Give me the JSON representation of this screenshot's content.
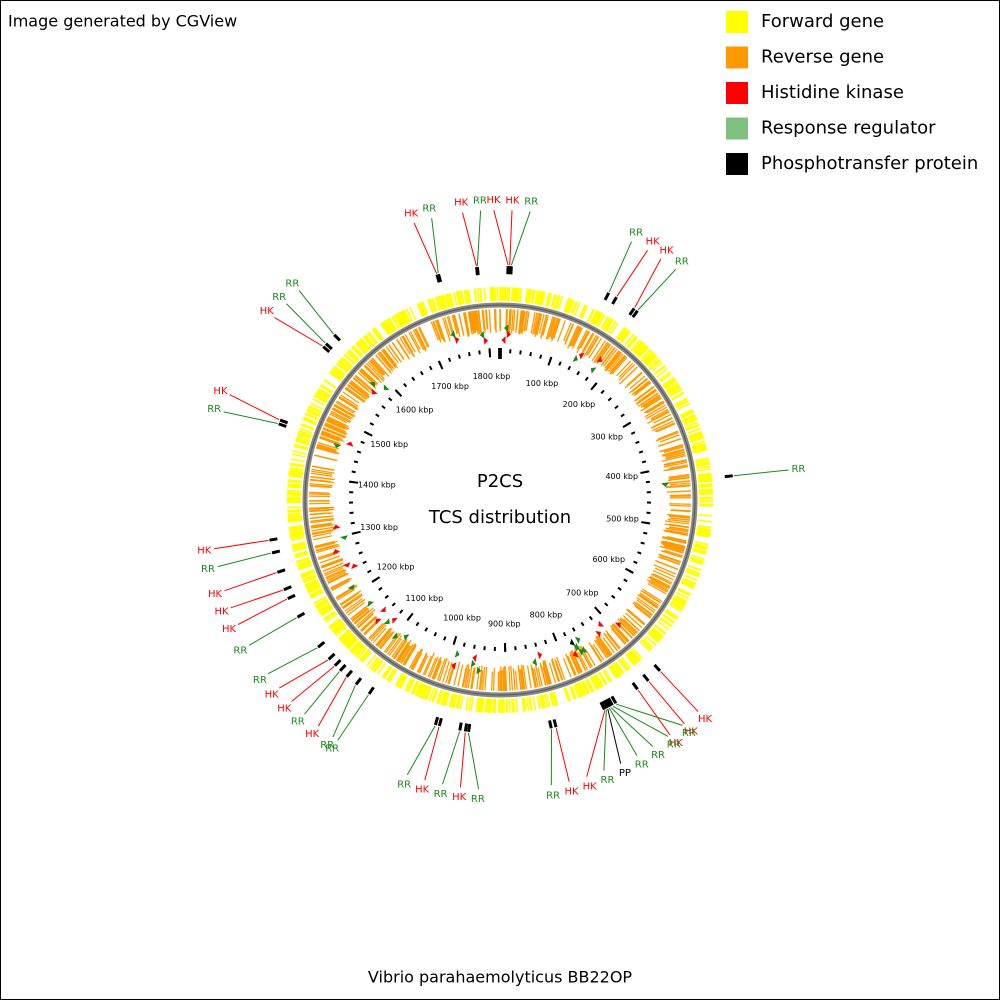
{
  "header": {
    "title": "Image generated by CGView"
  },
  "legend": [
    {
      "label": "Forward gene",
      "color": "#ffff00"
    },
    {
      "label": "Reverse gene",
      "color": "#ff9900"
    },
    {
      "label": "Histidine kinase",
      "color": "#ff0000"
    },
    {
      "label": "Response regulator",
      "color": "#80c080"
    },
    {
      "label": "Phosphotransfer protein",
      "color": "#000000"
    }
  ],
  "center": {
    "line1": "P2CS",
    "line2": "TCS distribution"
  },
  "footer": {
    "title": "Vibrio parahaemolyticus BB22OP"
  },
  "map": {
    "range_kbp": [
      0,
      1820
    ],
    "ticks": [
      {
        "value": 100,
        "label": "100 kbp"
      },
      {
        "value": 200,
        "label": "200 kbp"
      },
      {
        "value": 300,
        "label": "300 kbp"
      },
      {
        "value": 400,
        "label": "400 kbp"
      },
      {
        "value": 500,
        "label": "500 kbp"
      },
      {
        "value": 600,
        "label": "600 kbp"
      },
      {
        "value": 700,
        "label": "700 kbp"
      },
      {
        "value": 800,
        "label": "800 kbp"
      },
      {
        "value": 900,
        "label": "900 kbp"
      },
      {
        "value": 1000,
        "label": "1000 kbp"
      },
      {
        "value": 1100,
        "label": "1100 kbp"
      },
      {
        "value": 1200,
        "label": "1200 kbp"
      },
      {
        "value": 1300,
        "label": "1300 kbp"
      },
      {
        "value": 1400,
        "label": "1400 kbp"
      },
      {
        "value": 1500,
        "label": "1500 kbp"
      },
      {
        "value": 1600,
        "label": "1600 kbp"
      },
      {
        "value": 1700,
        "label": "1700 kbp"
      },
      {
        "value": 1800,
        "label": "1800 kbp"
      }
    ],
    "colors": {
      "HK": "#ff0000",
      "RR": "#1a8a1a",
      "PP": "#000000"
    },
    "features": [
      {
        "label": "HK",
        "kbp": 10
      },
      {
        "label": "HK",
        "kbp": 12
      },
      {
        "label": "RR",
        "kbp": 14
      },
      {
        "label": "RR",
        "kbp": 140
      },
      {
        "label": "HK",
        "kbp": 151
      },
      {
        "label": "HK",
        "kbp": 177
      },
      {
        "label": "RR",
        "kbp": 182
      },
      {
        "label": "RR",
        "kbp": 425
      },
      {
        "label": "HK",
        "kbp": 692
      },
      {
        "label": "HK",
        "kbp": 711
      },
      {
        "label": "HK",
        "kbp": 728
      },
      {
        "label": "RR",
        "kbp": 760
      },
      {
        "label": "RR",
        "kbp": 765
      },
      {
        "label": "RR",
        "kbp": 768
      },
      {
        "label": "RR",
        "kbp": 770
      },
      {
        "label": "PP",
        "kbp": 772
      },
      {
        "label": "RR",
        "kbp": 774
      },
      {
        "label": "HK",
        "kbp": 776
      },
      {
        "label": "HK",
        "kbp": 840
      },
      {
        "label": "RR",
        "kbp": 846
      },
      {
        "label": "RR",
        "kbp": 949
      },
      {
        "label": "HK",
        "kbp": 953
      },
      {
        "label": "RR",
        "kbp": 960
      },
      {
        "label": "HK",
        "kbp": 986
      },
      {
        "label": "RR",
        "kbp": 991
      },
      {
        "label": "RR",
        "kbp": 1082
      },
      {
        "label": "RR",
        "kbp": 1102
      },
      {
        "label": "HK",
        "kbp": 1117
      },
      {
        "label": "RR",
        "kbp": 1128
      },
      {
        "label": "HK",
        "kbp": 1137
      },
      {
        "label": "HK",
        "kbp": 1148
      },
      {
        "label": "RR",
        "kbp": 1168
      },
      {
        "label": "RR",
        "kbp": 1213
      },
      {
        "label": "HK",
        "kbp": 1239
      },
      {
        "label": "HK",
        "kbp": 1251
      },
      {
        "label": "HK",
        "kbp": 1274
      },
      {
        "label": "RR",
        "kbp": 1299
      },
      {
        "label": "HK",
        "kbp": 1315
      },
      {
        "label": "RR",
        "kbp": 1461
      },
      {
        "label": "HK",
        "kbp": 1466
      },
      {
        "label": "HK",
        "kbp": 1572
      },
      {
        "label": "RR",
        "kbp": 1577
      },
      {
        "label": "RR",
        "kbp": 1592
      },
      {
        "label": "HK",
        "kbp": 1741
      },
      {
        "label": "RR",
        "kbp": 1743
      },
      {
        "label": "HK",
        "kbp": 1791
      },
      {
        "label": "RR",
        "kbp": 1792
      }
    ]
  }
}
